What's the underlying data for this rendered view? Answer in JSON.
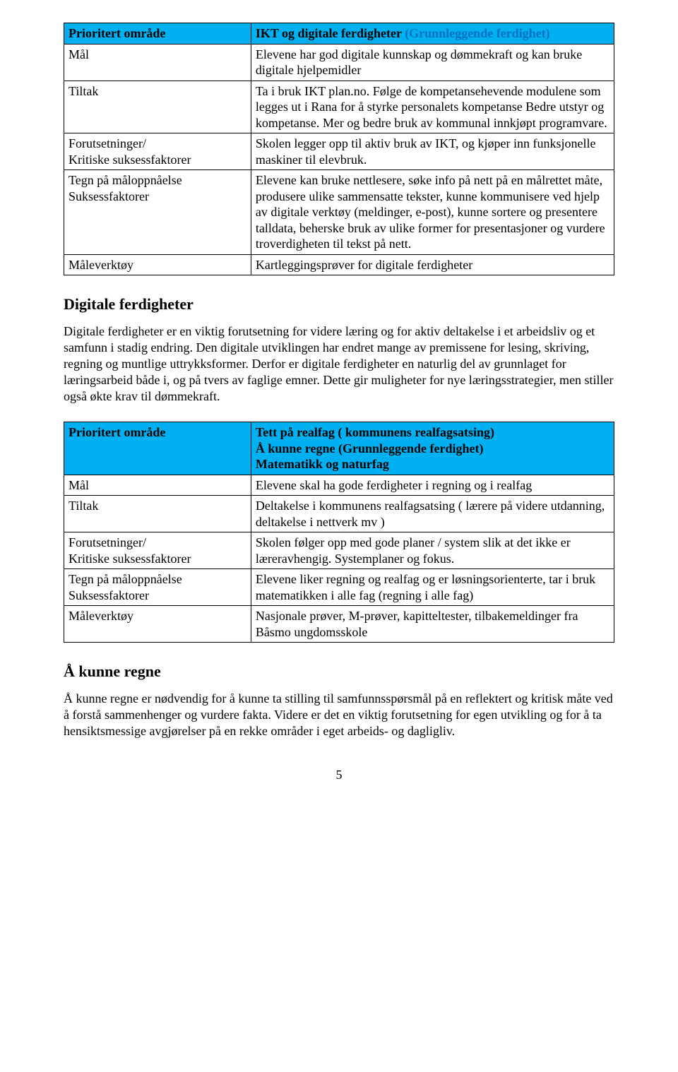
{
  "table1": {
    "header_label": "Prioritert område",
    "header_value_title_black": " IKT og digitale ferdigheter",
    "header_value_title_paren": " (Grunnleggende ferdighet)",
    "rows": [
      {
        "label": "Mål",
        "value": "Elevene har god  digitale kunnskap og dømmekraft og  kan bruke digitale hjelpemidler"
      },
      {
        "label": "Tiltak",
        "value": "Ta i bruk  IKT plan.no. Følge de kompetansehevende modulene som legges ut i Rana  for å styrke personalets kompetanse Bedre utstyr og kompetanse. Mer og bedre bruk av kommunal innkjøpt programvare."
      },
      {
        "label": "Forutsetninger/\nKritiske suksessfaktorer",
        "value": "Skolen legger opp til aktiv bruk av IKT, og  kjøper inn funksjonelle maskiner til elevbruk."
      },
      {
        "label": "Tegn på måloppnåelse\nSuksessfaktorer",
        "value": "Elevene kan bruke nettlesere, søke info på nett på en målrettet måte, produsere ulike sammensatte tekster, kunne kommunisere ved hjelp av digitale verktøy (meldinger, e-post), kunne sortere og presentere talldata, beherske bruk av ulike former for presentasjoner og vurdere troverdigheten til tekst på nett."
      },
      {
        "label": "Måleverktøy",
        "value": "Kartleggingsprøver  for digitale ferdigheter"
      }
    ]
  },
  "section1": {
    "title": "Digitale ferdigheter",
    "paragraph": "Digitale ferdigheter er en viktig forutsetning for videre læring og for aktiv deltakelse i et arbeidsliv og et samfunn i stadig endring. Den digitale utviklingen har endret mange av premissene for lesing, skriving, regning og muntlige uttrykksformer. Derfor er digitale ferdigheter en naturlig del av grunnlaget for læringsarbeid både i, og på tvers av faglige emner. Dette gir muligheter for nye læringsstrategier, men stiller også økte krav til dømmekraft."
  },
  "table2": {
    "header_label": "Prioritert område",
    "header_value_lines": [
      "Tett på realfag ( kommunens realfagsatsing)",
      "Å kunne regne (Grunnleggende ferdighet)",
      "Matematikk og naturfag"
    ],
    "rows": [
      {
        "label": "Mål",
        "value": "Elevene skal ha gode ferdigheter i regning og i realfag"
      },
      {
        "label": "Tiltak",
        "value": "Deltakelse i kommunens realfagsatsing ( lærere på videre utdanning, deltakelse i nettverk mv )"
      },
      {
        "label": "Forutsetninger/\nKritiske suksessfaktorer",
        "value": "Skolen følger opp med gode planer / system slik at det ikke er læreravhengig. Systemplaner og fokus."
      },
      {
        "label": "Tegn på måloppnåelse\nSuksessfaktorer",
        "value": "Elevene liker regning og realfag  og er løsningsorienterte, tar i bruk matematikken i alle fag (regning i alle fag)"
      },
      {
        "label": "Måleverktøy",
        "value": "Nasjonale prøver, M-prøver, kapitteltester, tilbakemeldinger fra Båsmo ungdomsskole"
      }
    ]
  },
  "section2": {
    "title": "Å kunne regne",
    "paragraph": "Å kunne regne er nødvendig for å kunne ta stilling til samfunnsspørsmål på en reflektert og kritisk måte ved å forstå sammenhenger og vurdere fakta. Videre er det en viktig forutsetning for egen utvikling og for å ta hensiktsmessige avgjørelser på en rekke områder i eget arbeids- og dagligliv."
  },
  "page_number": "5"
}
